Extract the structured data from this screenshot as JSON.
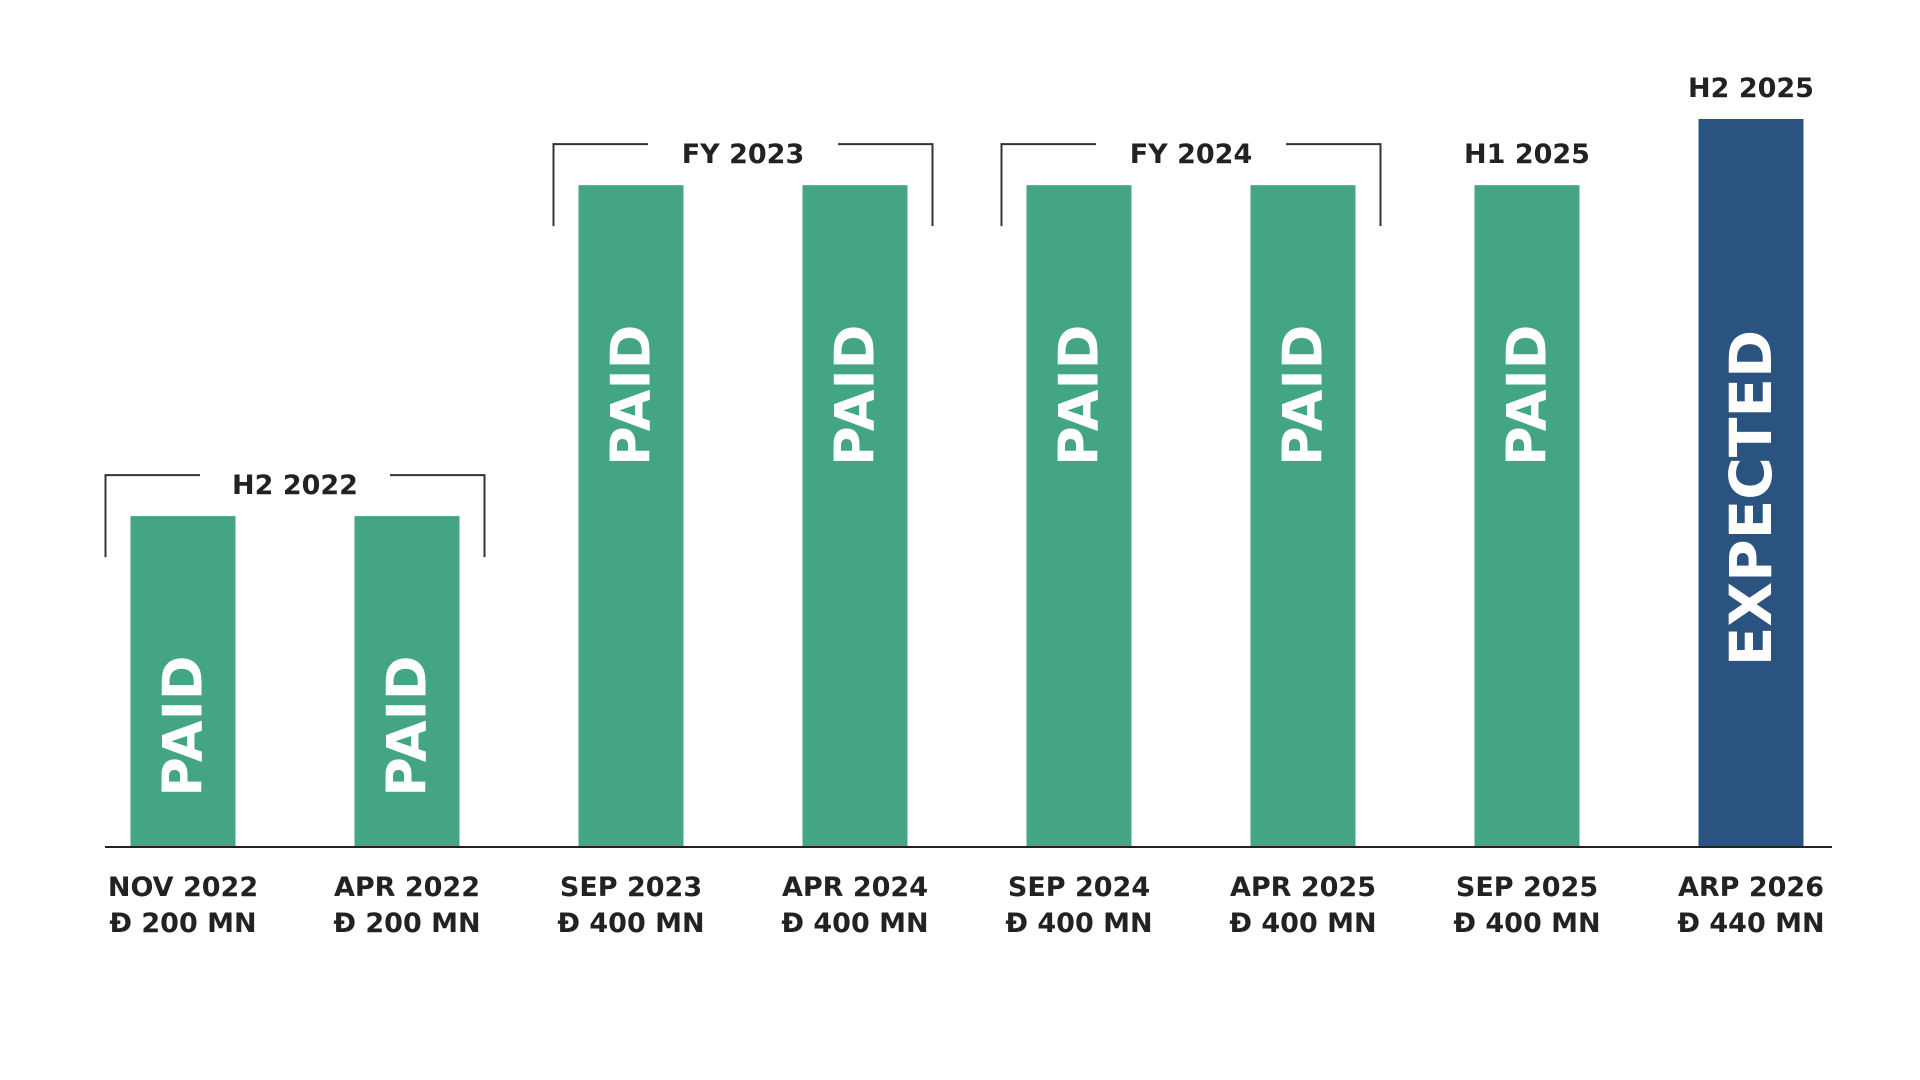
{
  "colors": {
    "paid": "#44a585",
    "expected": "#2a5380",
    "text": "#222222",
    "bracket": "#333333"
  },
  "chart_data": {
    "type": "bar",
    "categories": [
      "NOV 2022",
      "APR 2022",
      "SEP 2023",
      "APR 2024",
      "SEP 2024",
      "APR 2025",
      "SEP 2025",
      "ARP 2026"
    ],
    "currency_symbol": "Đ",
    "amount_labels": [
      "200 MN",
      "200 MN",
      "400 MN",
      "400 MN",
      "400 MN",
      "400 MN",
      "400 MN",
      "440 MN"
    ],
    "values": [
      200,
      200,
      400,
      400,
      400,
      400,
      400,
      440
    ],
    "status": [
      "PAID",
      "PAID",
      "PAID",
      "PAID",
      "PAID",
      "PAID",
      "PAID",
      "EXPECTED"
    ],
    "ylim": [
      0,
      440
    ],
    "groups": [
      {
        "label": "H2 2022",
        "start": 0,
        "end": 1,
        "bracket": true
      },
      {
        "label": "FY 2023",
        "start": 2,
        "end": 3,
        "bracket": true
      },
      {
        "label": "FY 2024",
        "start": 4,
        "end": 5,
        "bracket": true
      },
      {
        "label": "H1 2025",
        "start": 6,
        "end": 6,
        "bracket": false
      },
      {
        "label": "H2 2025",
        "start": 7,
        "end": 7,
        "bracket": false
      }
    ],
    "title": "",
    "xlabel": "",
    "ylabel": "",
    "grid": false,
    "legend": "none"
  }
}
